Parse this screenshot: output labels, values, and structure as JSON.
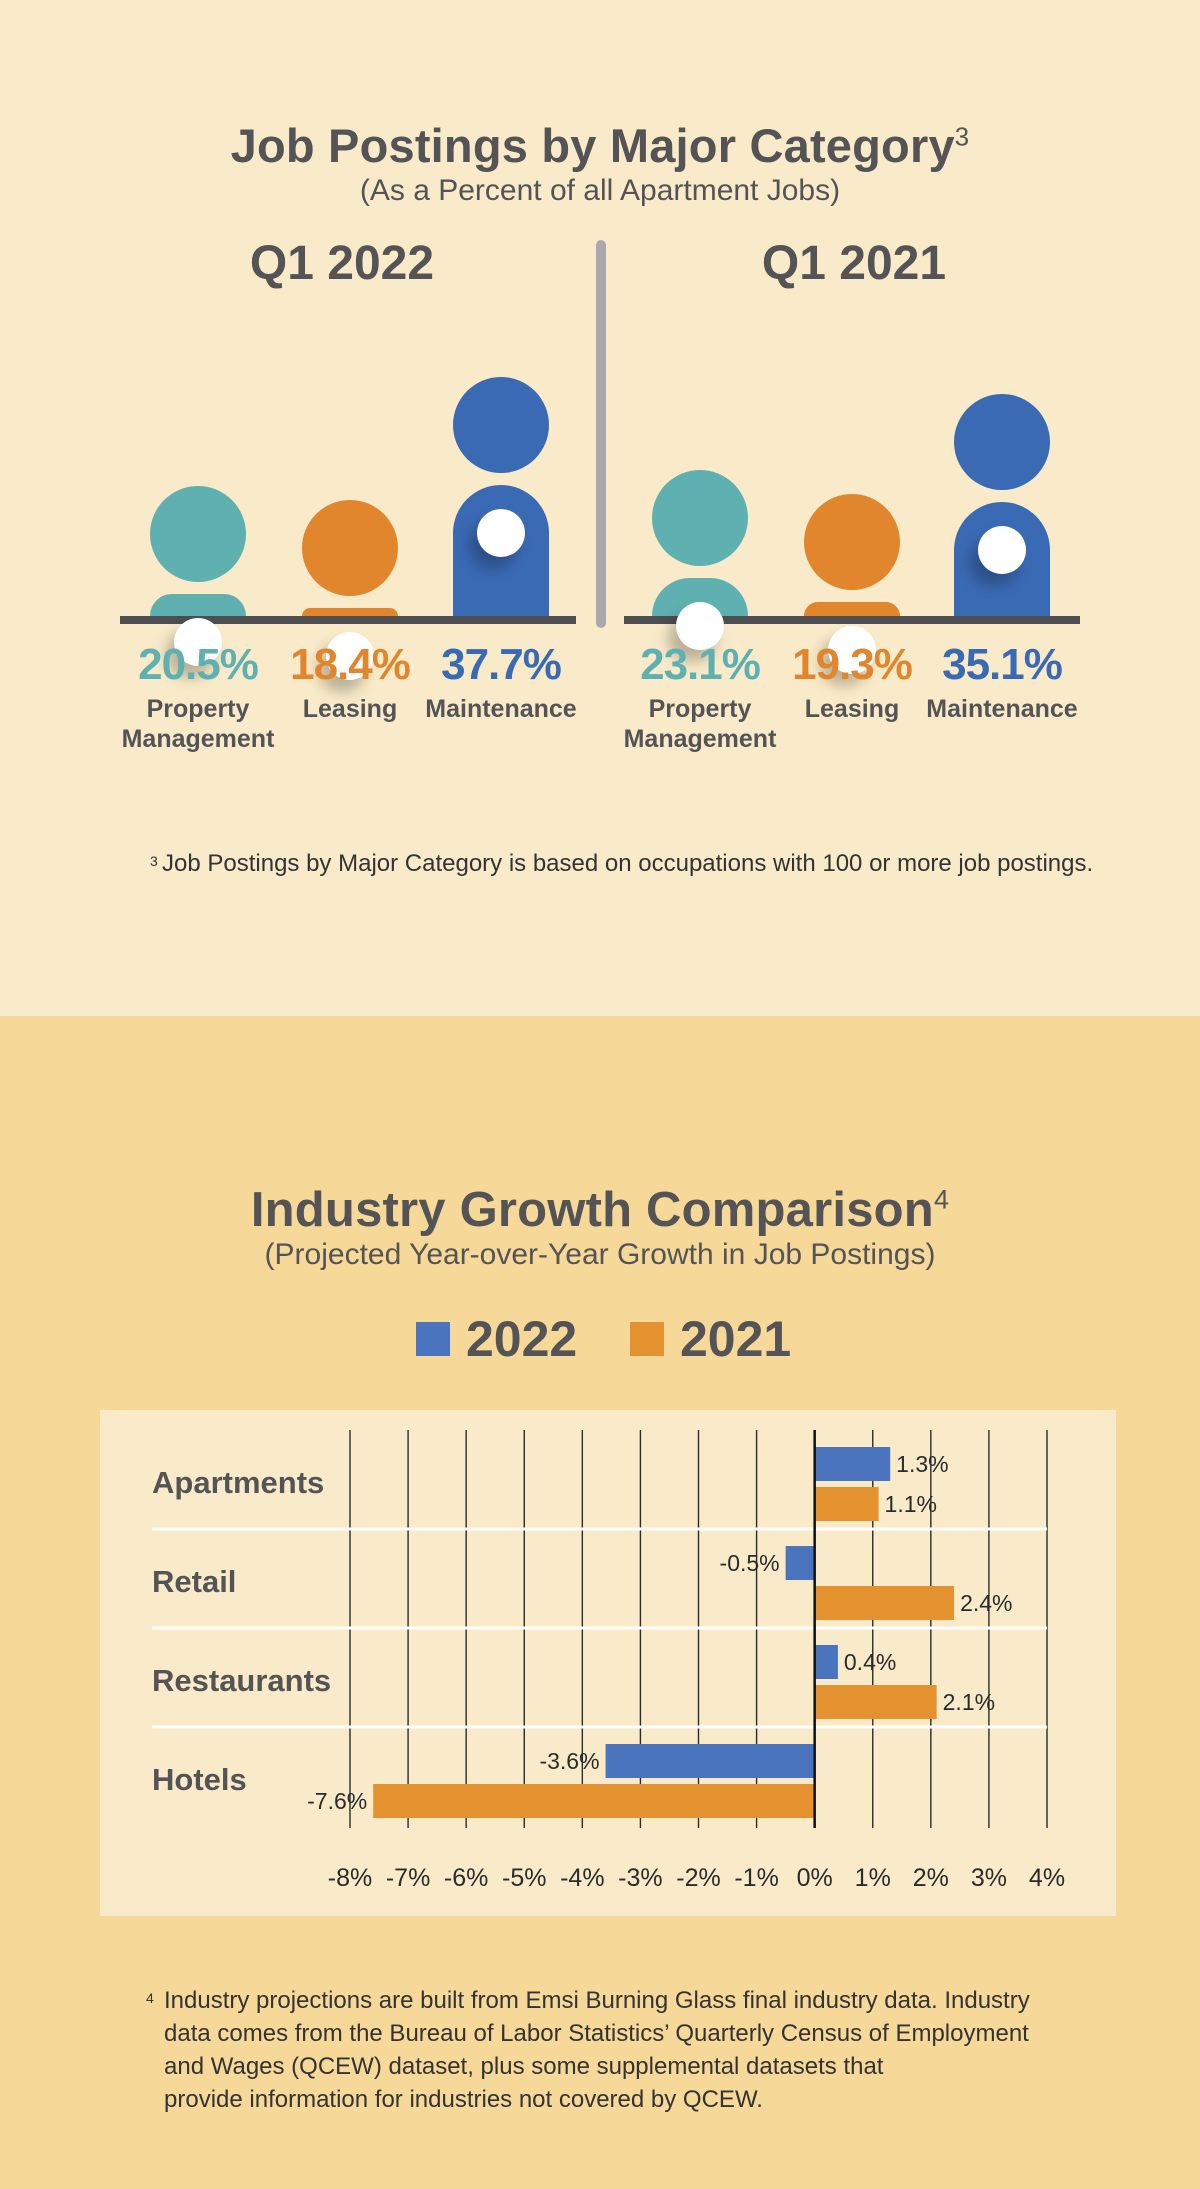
{
  "job_postings": {
    "title": "Job Postings by Major Category",
    "title_sup": "3",
    "subtitle": "(As a Percent of all Apartment Jobs)",
    "footnote_mark": "3",
    "footnote": "Job Postings by Major Category is based on occupations with 100 or more job postings."
  },
  "growth": {
    "title": "Industry Growth Comparison",
    "title_sup": "4",
    "subtitle": "(Projected Year-over-Year Growth in Job Postings)",
    "footnote_mark": "4",
    "footnote_lines": [
      "Industry projections are built from Emsi Burning Glass final industry data. Industry",
      "data comes from the Bureau of Labor Statistics’ Quarterly Census of Employment",
      "and Wages (QCEW) dataset, plus some supplemental datasets that",
      "provide information for industries not covered by QCEW."
    ]
  },
  "colors": {
    "teal": "#5fb0b0",
    "orange": "#e2862e",
    "blue": "#3b6ab5",
    "bar_2022": "#4a74bd",
    "bar_2021": "#e3922f"
  },
  "chart_data": [
    {
      "type": "bar",
      "title": "Q1 2022",
      "categories": [
        "Property Management",
        "Leasing",
        "Maintenance"
      ],
      "values": [
        20.5,
        18.4,
        37.7
      ],
      "value_labels": [
        "20.5%",
        "18.4%",
        "37.7%"
      ],
      "unit": "%"
    },
    {
      "type": "bar",
      "title": "Q1 2021",
      "categories": [
        "Property Management",
        "Leasing",
        "Maintenance"
      ],
      "values": [
        23.1,
        19.3,
        35.1
      ],
      "value_labels": [
        "23.1%",
        "19.3%",
        "35.1%"
      ],
      "unit": "%"
    },
    {
      "type": "bar",
      "orientation": "horizontal",
      "categories": [
        "Apartments",
        "Retail",
        "Restaurants",
        "Hotels"
      ],
      "series": [
        {
          "name": "2022",
          "values": [
            1.3,
            -0.5,
            0.4,
            -3.6
          ],
          "labels": [
            "1.3%",
            "-0.5%",
            "0.4%",
            "-3.6%"
          ]
        },
        {
          "name": "2021",
          "values": [
            1.1,
            2.4,
            2.1,
            -7.6
          ],
          "labels": [
            "1.1%",
            "2.4%",
            "2.1%",
            "-7.6%"
          ]
        }
      ],
      "xlim": [
        -8,
        4
      ],
      "xticks": [
        "-8%",
        "-7%",
        "-6%",
        "-5%",
        "-4%",
        "-3%",
        "-2%",
        "-1%",
        "0%",
        "1%",
        "2%",
        "3%",
        "4%"
      ],
      "grid": true,
      "legend_position": "top"
    }
  ]
}
